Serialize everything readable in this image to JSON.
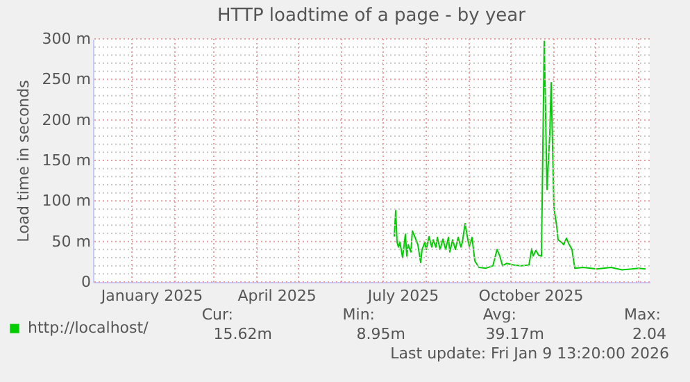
{
  "chart_data": {
    "type": "line",
    "title": "HTTP loadtime of a page - by year",
    "ylabel": "Load time in seconds",
    "xlim": [
      "2024-12-04",
      "2026-01-09"
    ],
    "xticks": [
      {
        "value": "2025-01-15",
        "label": "January 2025"
      },
      {
        "value": "2025-04-15",
        "label": "April 2025"
      },
      {
        "value": "2025-07-15",
        "label": "July 2025"
      },
      {
        "value": "2025-10-15",
        "label": "October 2025"
      },
      {
        "value": "2025-01-01",
        "label": null
      },
      {
        "value": "2025-02-01",
        "label": null
      },
      {
        "value": "2025-03-01",
        "label": null
      },
      {
        "value": "2025-04-01",
        "label": null
      },
      {
        "value": "2025-05-01",
        "label": null
      },
      {
        "value": "2025-06-01",
        "label": null
      },
      {
        "value": "2025-07-01",
        "label": null
      },
      {
        "value": "2025-08-01",
        "label": null
      },
      {
        "value": "2025-09-01",
        "label": null
      },
      {
        "value": "2025-10-01",
        "label": null
      },
      {
        "value": "2025-11-01",
        "label": null
      },
      {
        "value": "2025-12-01",
        "label": null
      },
      {
        "value": "2026-01-01",
        "label": null
      }
    ],
    "ylim": [
      0,
      300
    ],
    "yticks": [
      0,
      {
        "value": 50,
        "label": "50 m"
      },
      {
        "value": 100,
        "label": "100 m"
      },
      {
        "value": 150,
        "label": "150 m"
      },
      {
        "value": 200,
        "label": "200 m"
      },
      {
        "value": 250,
        "label": "250 m"
      },
      {
        "value": 300,
        "label": "300 m"
      },
      {
        "value": 10,
        "label": null
      },
      {
        "value": 20,
        "label": null
      },
      {
        "value": 30,
        "label": null
      },
      {
        "value": 40,
        "label": null
      },
      {
        "value": 60,
        "label": null
      },
      {
        "value": 70,
        "label": null
      },
      {
        "value": 80,
        "label": null
      },
      {
        "value": 90,
        "label": null
      },
      {
        "value": 110,
        "label": null
      },
      {
        "value": 120,
        "label": null
      },
      {
        "value": 130,
        "label": null
      },
      {
        "value": 140,
        "label": null
      },
      {
        "value": 160,
        "label": null
      },
      {
        "value": 170,
        "label": null
      },
      {
        "value": 180,
        "label": null
      },
      {
        "value": 190,
        "label": null
      },
      {
        "value": 210,
        "label": null
      },
      {
        "value": 220,
        "label": null
      },
      {
        "value": 230,
        "label": null
      },
      {
        "value": 240,
        "label": null
      },
      {
        "value": 260,
        "label": null
      },
      {
        "value": 270,
        "label": null
      },
      {
        "value": 280,
        "label": null
      },
      {
        "value": 290,
        "label": null
      }
    ],
    "grid": true,
    "legend": "bottom",
    "x": [
      "2025-07-09",
      "2025-07-10",
      "2025-07-11",
      "2025-07-12",
      "2025-07-13",
      "2025-07-14",
      "2025-07-15",
      "2025-07-17",
      "2025-07-18",
      "2025-07-19",
      "2025-07-21",
      "2025-07-22",
      "2025-07-24",
      "2025-07-26",
      "2025-07-28",
      "2025-07-29",
      "2025-07-31",
      "2025-08-01",
      "2025-08-03",
      "2025-08-05",
      "2025-08-06",
      "2025-08-08",
      "2025-08-09",
      "2025-08-11",
      "2025-08-13",
      "2025-08-15",
      "2025-08-17",
      "2025-08-18",
      "2025-08-20",
      "2025-08-22",
      "2025-08-24",
      "2025-08-26",
      "2025-08-27",
      "2025-08-29",
      "2025-08-31",
      "2025-09-01",
      "2025-09-03",
      "2025-09-05",
      "2025-09-08",
      "2025-09-13",
      "2025-09-18",
      "2025-09-21",
      "2025-09-23",
      "2025-09-25",
      "2025-09-28",
      "2025-10-03",
      "2025-10-08",
      "2025-10-14",
      "2025-10-16",
      "2025-10-17",
      "2025-10-19",
      "2025-10-21",
      "2025-10-23",
      "2025-10-25",
      "2025-10-27",
      "2025-10-29",
      "2025-10-30",
      "2025-11-01",
      "2025-11-03",
      "2025-11-04",
      "2025-11-07",
      "2025-11-08",
      "2025-11-10",
      "2025-11-12",
      "2025-11-14",
      "2025-11-16",
      "2025-11-22",
      "2025-12-02",
      "2025-12-12",
      "2025-12-20",
      "2025-12-27",
      "2026-01-01",
      "2026-01-06"
    ],
    "series": [
      {
        "name": "http://localhost/",
        "color": "#00cc00",
        "values": [
          56,
          88,
          49,
          43,
          49,
          40,
          30,
          59,
          32,
          46,
          37,
          63,
          55,
          46,
          24,
          40,
          49,
          40,
          56,
          43,
          52,
          43,
          55,
          40,
          53,
          40,
          55,
          37,
          52,
          40,
          55,
          43,
          49,
          72,
          52,
          44,
          55,
          26,
          18,
          17,
          20,
          40,
          32,
          20,
          23,
          21,
          20,
          21,
          41,
          32,
          39,
          33,
          32,
          297,
          114,
          183,
          246,
          91,
          69,
          52,
          48,
          46,
          54,
          46,
          40,
          17,
          18,
          16,
          18,
          15,
          16,
          17,
          16
        ]
      }
    ],
    "annotations": [
      "Cur:",
      "15.62m",
      "Min:",
      "8.95m",
      "Avg:",
      "39.17m",
      "Max:",
      "2.04",
      "Last update: Fri Jan  9 13:20:00 2026"
    ]
  }
}
